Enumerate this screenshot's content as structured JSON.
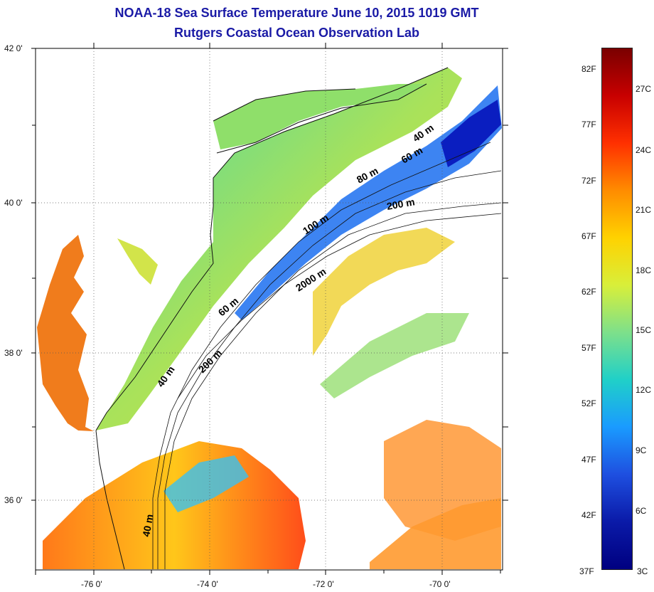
{
  "header": {
    "title": "NOAA-18 Sea Surface Temperature June 10, 2015 1019 GMT",
    "subtitle": "Rutgers Coastal Ocean Observation Lab"
  },
  "map": {
    "lat_labels": [
      "42 0'",
      "40 0'",
      "38 0'",
      "36 0'"
    ],
    "lon_labels": [
      "-76 0'",
      "-74 0'",
      "-72 0'",
      "-70 0'"
    ],
    "contour_labels": [
      "40 m",
      "60 m",
      "80 m",
      "100 m",
      "200 m",
      "2000 m",
      "60 m",
      "40 m",
      "200 m",
      "40 m"
    ]
  },
  "colorbar": {
    "fahrenheit": [
      "82F",
      "77F",
      "72F",
      "67F",
      "62F",
      "57F",
      "52F",
      "47F",
      "42F",
      "37F"
    ],
    "celsius": [
      "27C",
      "24C",
      "21C",
      "18C",
      "15C",
      "12C",
      "9C",
      "6C",
      "3C"
    ],
    "colors": [
      "#7a0000",
      "#c80000",
      "#ff3000",
      "#ff8c00",
      "#ffd200",
      "#d8ef3a",
      "#7ee08a",
      "#20d0c8",
      "#1a9bff",
      "#1e4fe0",
      "#0a1aa8",
      "#000080"
    ]
  }
}
